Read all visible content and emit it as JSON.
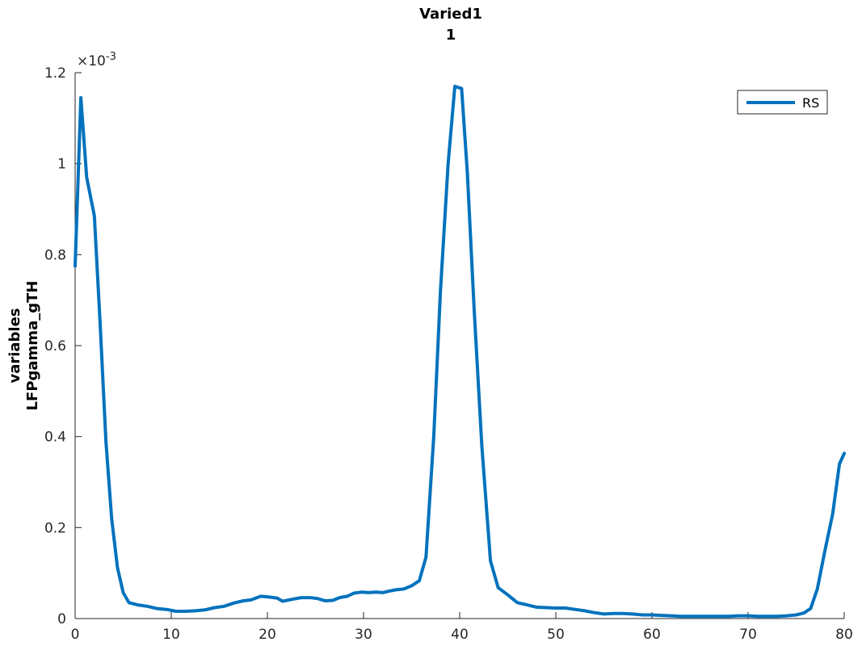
{
  "chart_data": {
    "type": "line",
    "title": "Varied1",
    "subtitle": "1",
    "xlabel": "",
    "ylabel_lines": [
      "variables",
      "LFPgamma_gTH"
    ],
    "y_exponent_label": "×10^-3",
    "xlim": [
      0,
      80
    ],
    "ylim": [
      0,
      1.2
    ],
    "x_ticks": [
      "0",
      "10",
      "20",
      "30",
      "40",
      "50",
      "60",
      "70",
      "80"
    ],
    "y_ticks": [
      "0",
      "0.2",
      "0.4",
      "0.6",
      "0.8",
      "1",
      "1.2"
    ],
    "grid": false,
    "legend_position": "top-right",
    "series": [
      {
        "name": "RS",
        "color": "#0072BD",
        "x": [
          0,
          0.6,
          1.2,
          2,
          2.6,
          3.2,
          3.8,
          4.4,
          5,
          5.6,
          6.5,
          7.5,
          8.5,
          9.5,
          10.5,
          11.5,
          12.5,
          13.5,
          14.5,
          15.5,
          16.5,
          17.5,
          18.3,
          19.3,
          20.3,
          21,
          21.6,
          22.5,
          23.5,
          24.5,
          25.2,
          26,
          26.8,
          27.5,
          28.3,
          29,
          29.8,
          30.5,
          31.3,
          32,
          32.6,
          33.3,
          34.2,
          35,
          35.8,
          36.5,
          37.3,
          38,
          38.8,
          39.5,
          40.2,
          40.8,
          41.5,
          42.3,
          43.2,
          44,
          45,
          46,
          47,
          48,
          49,
          50,
          51,
          52,
          53,
          54,
          55,
          56,
          57,
          58,
          59,
          60,
          61,
          62,
          63,
          64,
          65,
          66,
          67,
          68,
          69,
          70,
          71,
          72,
          73,
          74,
          75,
          75.8,
          76.5,
          77.2,
          78,
          78.8,
          79.5,
          80
        ],
        "values": [
          0.775,
          1.145,
          0.97,
          0.885,
          0.65,
          0.39,
          0.22,
          0.112,
          0.057,
          0.035,
          0.03,
          0.027,
          0.022,
          0.02,
          0.016,
          0.016,
          0.017,
          0.019,
          0.024,
          0.027,
          0.034,
          0.039,
          0.041,
          0.049,
          0.047,
          0.045,
          0.038,
          0.042,
          0.046,
          0.046,
          0.044,
          0.039,
          0.04,
          0.046,
          0.049,
          0.056,
          0.058,
          0.057,
          0.058,
          0.057,
          0.06,
          0.063,
          0.065,
          0.072,
          0.083,
          0.135,
          0.4,
          0.72,
          1.0,
          1.17,
          1.165,
          0.98,
          0.68,
          0.38,
          0.127,
          0.068,
          0.052,
          0.035,
          0.03,
          0.025,
          0.024,
          0.023,
          0.023,
          0.02,
          0.017,
          0.013,
          0.01,
          0.011,
          0.011,
          0.01,
          0.008,
          0.008,
          0.007,
          0.006,
          0.005,
          0.005,
          0.005,
          0.005,
          0.005,
          0.005,
          0.006,
          0.006,
          0.005,
          0.005,
          0.005,
          0.006,
          0.008,
          0.012,
          0.022,
          0.065,
          0.15,
          0.23,
          0.34,
          0.363
        ]
      }
    ]
  }
}
